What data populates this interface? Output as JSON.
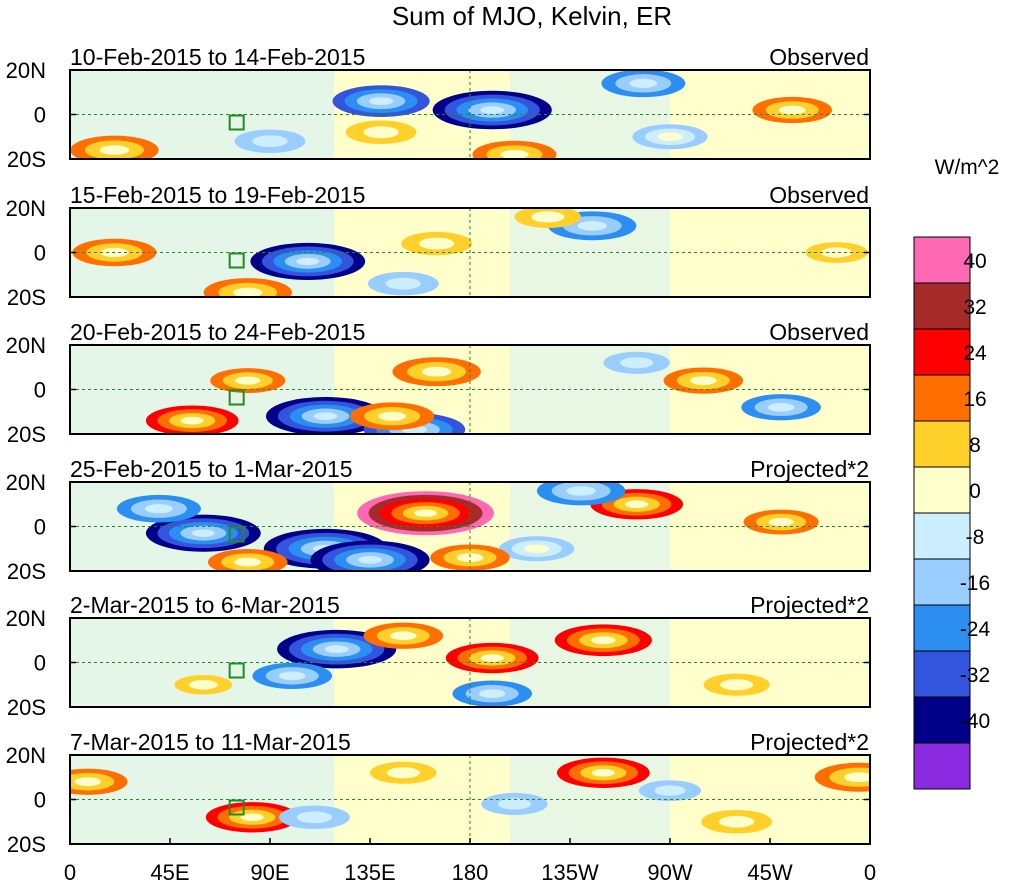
{
  "chart_data": {
    "type": "heatmap",
    "title": "Sum of MJO, Kelvin, ER",
    "colorbar": {
      "units_label": "W/m^2",
      "levels": [
        -40,
        -32,
        -24,
        -16,
        -8,
        0,
        8,
        16,
        24,
        32,
        40
      ],
      "tick_labels": [
        "40",
        "32",
        "24",
        "16",
        "8",
        "0",
        "-8",
        "-16",
        "-24",
        "-32",
        "-40"
      ],
      "colors_top_to_bottom": [
        "#ff69b4",
        "#a52a2a",
        "#ff0000",
        "#ff6f00",
        "#ffd02a",
        "#ffffcc",
        "#cceeff",
        "#99ccff",
        "#2b8ef0",
        "#3355dd",
        "#000088",
        "#8a2be2"
      ]
    },
    "x_ticks": [
      "0",
      "45E",
      "90E",
      "135E",
      "180",
      "135W",
      "90W",
      "45W",
      "0"
    ],
    "y_ticks": [
      "20N",
      "0",
      "20S"
    ],
    "lon_range": [
      0,
      360
    ],
    "lat_range": [
      -20,
      20
    ],
    "panels": [
      {
        "period": "10-Feb-2015 to 14-Feb-2015",
        "kind": "Observed",
        "anomalies": [
          {
            "lon": 190,
            "lat": 2,
            "value": -36
          },
          {
            "lon": 140,
            "lat": 6,
            "value": -26
          },
          {
            "lon": 258,
            "lat": 14,
            "value": -20
          },
          {
            "lon": 325,
            "lat": 2,
            "value": 18
          },
          {
            "lon": 20,
            "lat": -16,
            "value": 22
          },
          {
            "lon": 200,
            "lat": -18,
            "value": 20
          },
          {
            "lon": 140,
            "lat": -8,
            "value": 14
          },
          {
            "lon": 90,
            "lat": -12,
            "value": -14
          },
          {
            "lon": 270,
            "lat": -10,
            "value": -16
          }
        ]
      },
      {
        "period": "15-Feb-2015 to 19-Feb-2015",
        "kind": "Observed",
        "anomalies": [
          {
            "lon": 107,
            "lat": -4,
            "value": -34
          },
          {
            "lon": 80,
            "lat": -18,
            "value": 22
          },
          {
            "lon": 20,
            "lat": 0,
            "value": 20
          },
          {
            "lon": 235,
            "lat": 12,
            "value": -22
          },
          {
            "lon": 165,
            "lat": 4,
            "value": 14
          },
          {
            "lon": 215,
            "lat": 16,
            "value": 12
          },
          {
            "lon": 150,
            "lat": -14,
            "value": -14
          },
          {
            "lon": 345,
            "lat": 0,
            "value": 10
          }
        ]
      },
      {
        "period": "20-Feb-2015 to 24-Feb-2015",
        "kind": "Observed",
        "anomalies": [
          {
            "lon": 115,
            "lat": -12,
            "value": -36
          },
          {
            "lon": 155,
            "lat": -18,
            "value": -28
          },
          {
            "lon": 145,
            "lat": -12,
            "value": 20
          },
          {
            "lon": 165,
            "lat": 8,
            "value": 22
          },
          {
            "lon": 285,
            "lat": 4,
            "value": 18
          },
          {
            "lon": 55,
            "lat": -14,
            "value": 24
          },
          {
            "lon": 80,
            "lat": 4,
            "value": 16
          },
          {
            "lon": 255,
            "lat": 12,
            "value": -12
          },
          {
            "lon": 320,
            "lat": -8,
            "value": -18
          }
        ]
      },
      {
        "period": "25-Feb-2015 to 1-Mar-2015",
        "kind": "Projected*2",
        "anomalies": [
          {
            "lon": 160,
            "lat": 6,
            "value": 44
          },
          {
            "lon": 115,
            "lat": -10,
            "value": -38
          },
          {
            "lon": 135,
            "lat": -15,
            "value": -36
          },
          {
            "lon": 255,
            "lat": 10,
            "value": 24
          },
          {
            "lon": 60,
            "lat": -3,
            "value": -34
          },
          {
            "lon": 40,
            "lat": 8,
            "value": -20
          },
          {
            "lon": 230,
            "lat": 16,
            "value": -22
          },
          {
            "lon": 80,
            "lat": -16,
            "value": 18
          },
          {
            "lon": 320,
            "lat": 2,
            "value": 16
          },
          {
            "lon": 210,
            "lat": -10,
            "value": -16
          },
          {
            "lon": 180,
            "lat": -14,
            "value": 18
          }
        ]
      },
      {
        "period": "2-Mar-2015 to 6-Mar-2015",
        "kind": "Projected*2",
        "anomalies": [
          {
            "lon": 120,
            "lat": 6,
            "value": -36
          },
          {
            "lon": 190,
            "lat": 2,
            "value": 24
          },
          {
            "lon": 240,
            "lat": 10,
            "value": 26
          },
          {
            "lon": 150,
            "lat": 12,
            "value": 18
          },
          {
            "lon": 100,
            "lat": -6,
            "value": -18
          },
          {
            "lon": 190,
            "lat": -14,
            "value": -18
          },
          {
            "lon": 300,
            "lat": -10,
            "value": 12
          },
          {
            "lon": 60,
            "lat": -10,
            "value": 8
          }
        ]
      },
      {
        "period": "7-Mar-2015 to 11-Mar-2015",
        "kind": "Projected*2",
        "anomalies": [
          {
            "lon": 82,
            "lat": -8,
            "value": 24
          },
          {
            "lon": 240,
            "lat": 12,
            "value": 24
          },
          {
            "lon": 355,
            "lat": 10,
            "value": 22
          },
          {
            "lon": 8,
            "lat": 8,
            "value": 18
          },
          {
            "lon": 150,
            "lat": 12,
            "value": 12
          },
          {
            "lon": 300,
            "lat": -10,
            "value": 14
          },
          {
            "lon": 110,
            "lat": -8,
            "value": -14
          },
          {
            "lon": 200,
            "lat": -2,
            "value": -12
          },
          {
            "lon": 270,
            "lat": 4,
            "value": -10
          }
        ]
      }
    ]
  }
}
